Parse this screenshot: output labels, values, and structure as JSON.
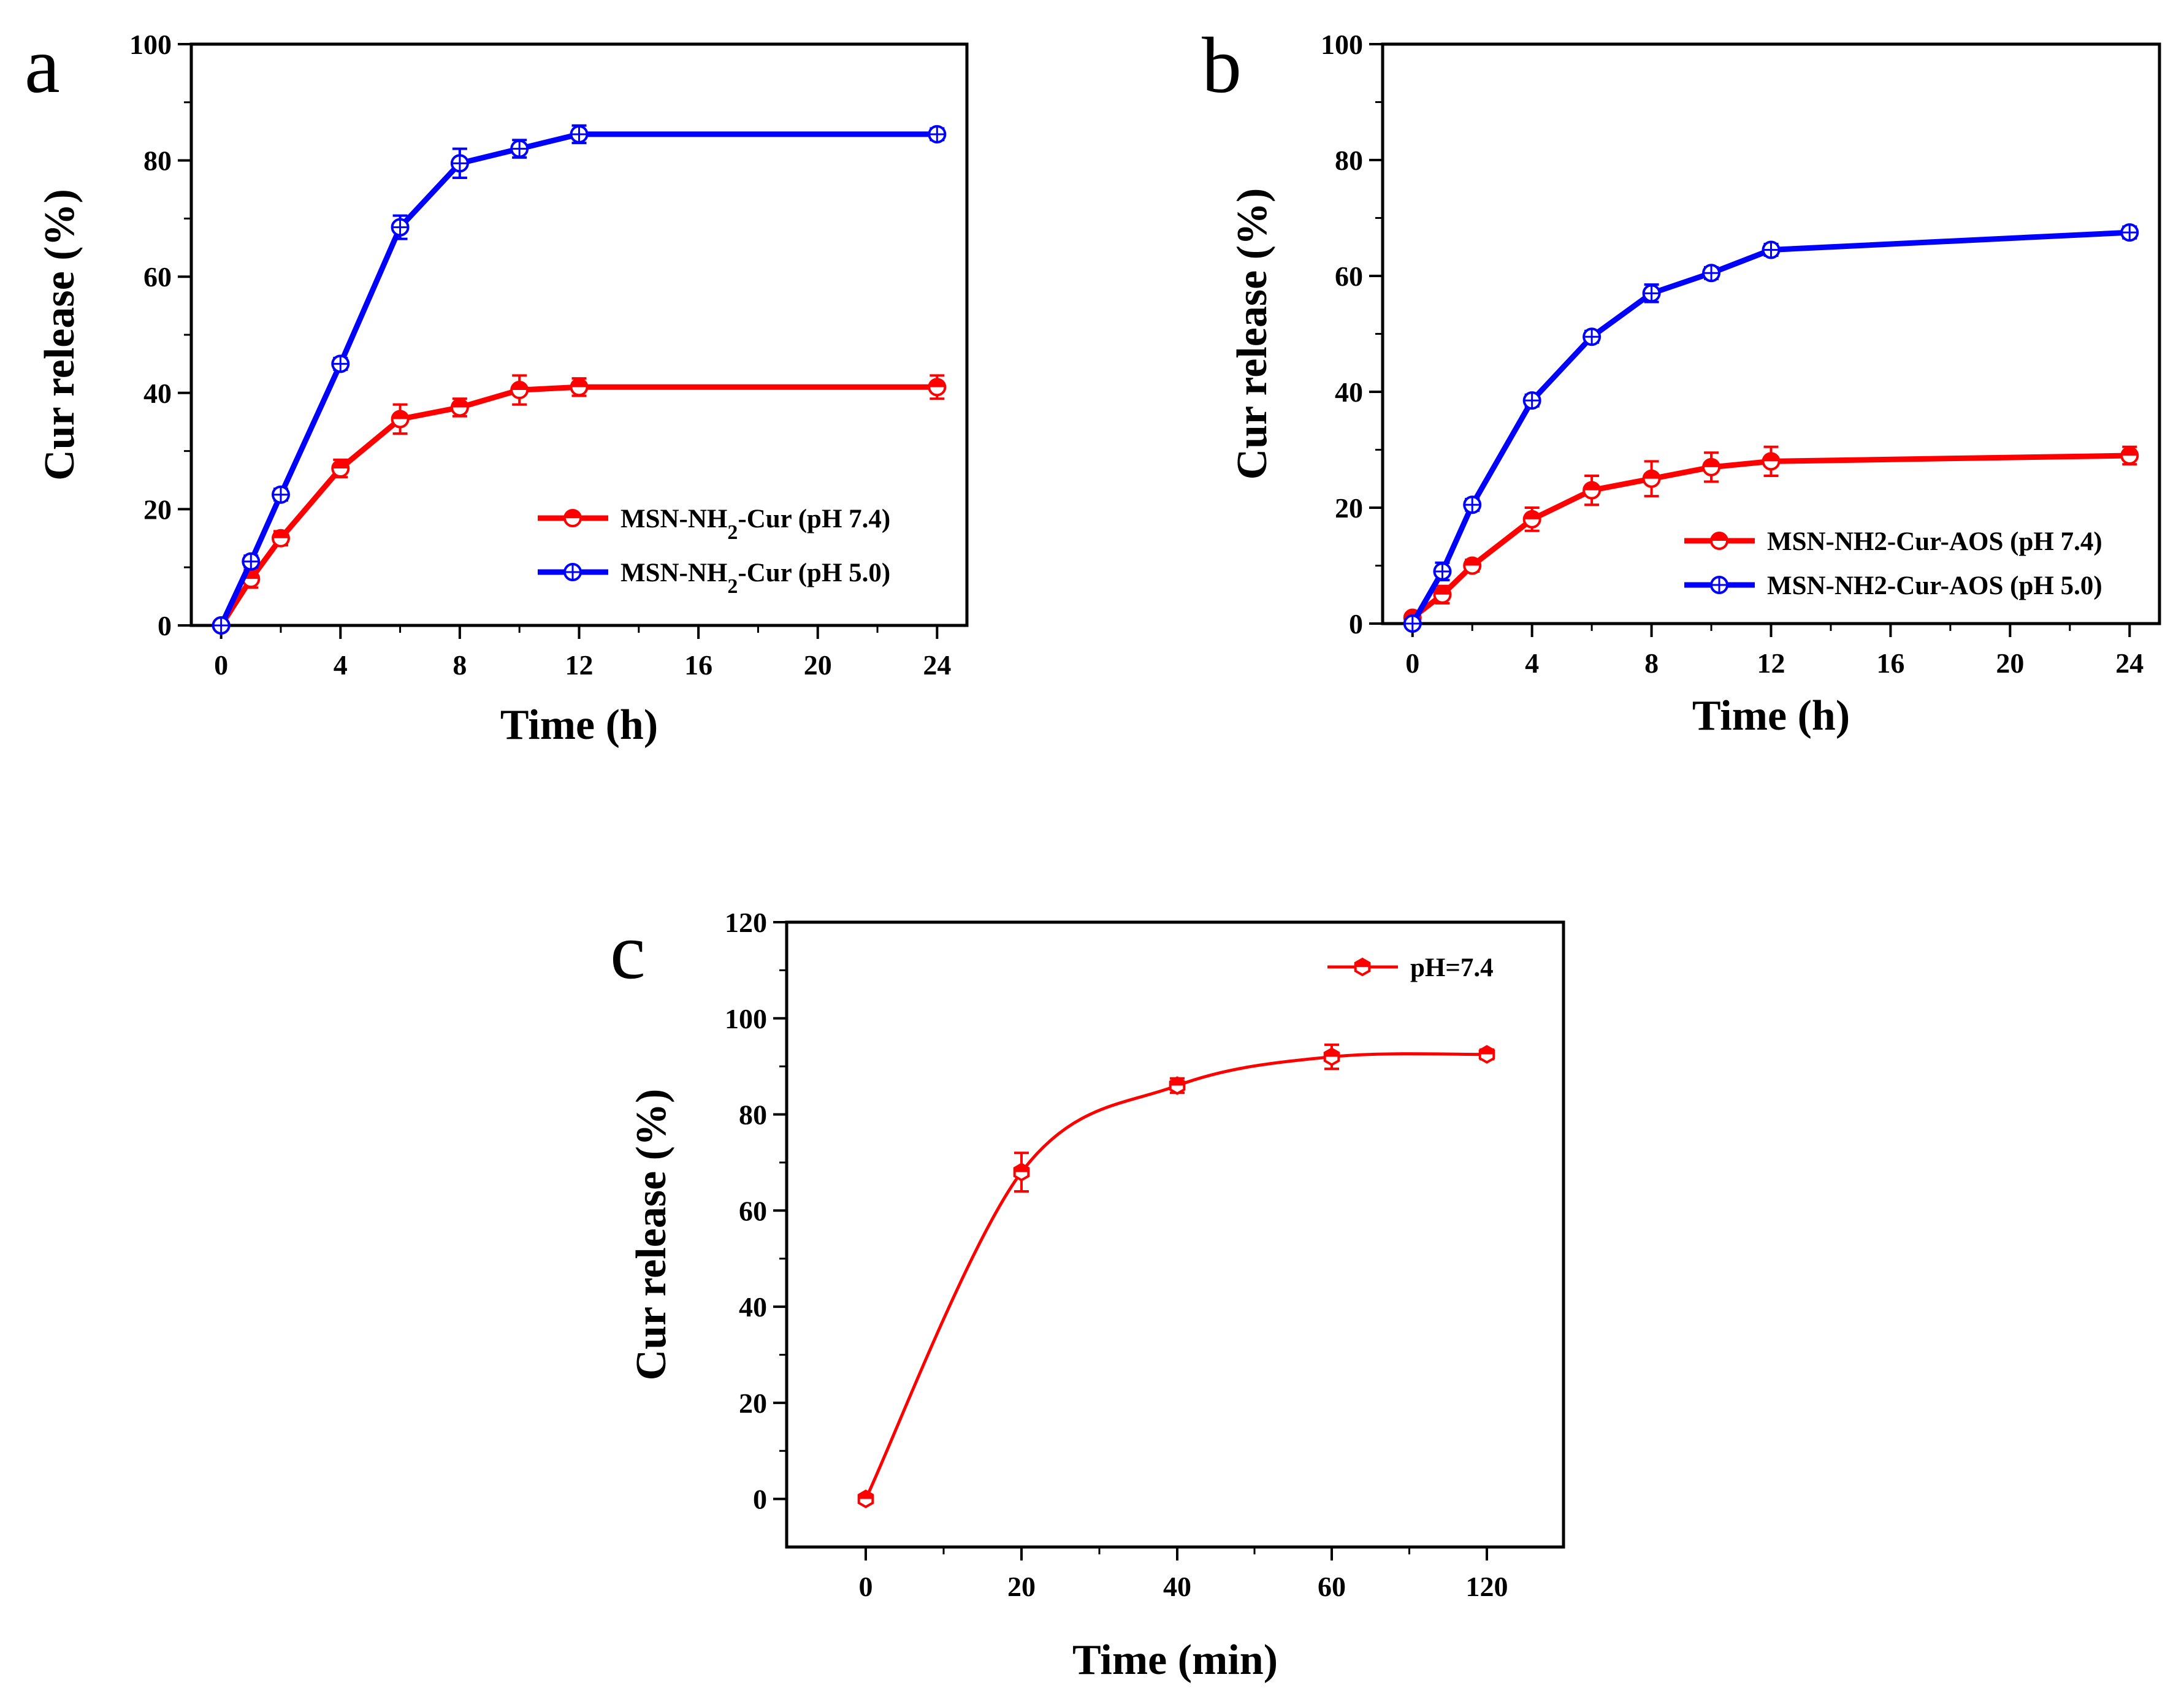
{
  "figure": {
    "charts_count": 3
  },
  "chart_data": [
    {
      "id": "a",
      "panel_label": "a",
      "type": "line",
      "xlabel": "Time (h)",
      "ylabel": "Cur release (%)",
      "xlim": [
        -1,
        25
      ],
      "ylim": [
        0,
        100
      ],
      "xticks": [
        "0",
        "4",
        "8",
        "12",
        "16",
        "20",
        "24"
      ],
      "yticks": [
        "0",
        "20",
        "40",
        "60",
        "80",
        "100"
      ],
      "x": [
        0,
        1,
        2,
        4,
        6,
        8,
        10,
        12,
        24
      ],
      "legend_position": "bottom-right",
      "series": [
        {
          "name_prefix": "MSN-NH",
          "name_sub": "2",
          "name_suffix": "-Cur (pH 7.4)",
          "color": "#ff0000",
          "values": [
            0,
            8,
            15,
            27,
            35.5,
            37.5,
            40.5,
            41,
            41
          ],
          "errors": [
            0.5,
            1.5,
            1.2,
            1.5,
            2.5,
            1.5,
            2.5,
            1.5,
            2
          ]
        },
        {
          "name_prefix": "MSN-NH",
          "name_sub": "2",
          "name_suffix": "-Cur (pH 5.0)",
          "color": "#0000ff",
          "values": [
            0,
            11,
            22.5,
            45,
            68.5,
            79.5,
            82,
            84.5,
            84.5
          ],
          "errors": [
            0.5,
            1,
            1,
            1,
            2,
            2.5,
            1.5,
            1.5,
            1
          ]
        }
      ]
    },
    {
      "id": "b",
      "panel_label": "b",
      "type": "line",
      "xlabel": "Time (h)",
      "ylabel": "Cur release (%)",
      "xlim": [
        -1,
        25
      ],
      "ylim": [
        0,
        100
      ],
      "xticks": [
        "0",
        "4",
        "8",
        "12",
        "16",
        "20",
        "24"
      ],
      "yticks": [
        "0",
        "20",
        "40",
        "60",
        "80",
        "100"
      ],
      "x": [
        0,
        1,
        2,
        4,
        6,
        8,
        10,
        12,
        24
      ],
      "legend_position": "bottom-right",
      "series": [
        {
          "name_prefix": "MSN-NH2-Cur-AOS (pH 7.4)",
          "name_sub": "",
          "name_suffix": "",
          "color": "#ff0000",
          "values": [
            1,
            5,
            10,
            18,
            23,
            25,
            27,
            28,
            29
          ],
          "errors": [
            0.5,
            1.5,
            1,
            2,
            2.5,
            3,
            2.5,
            2.5,
            1.5
          ]
        },
        {
          "name_prefix": "MSN-NH2-Cur-AOS (pH 5.0)",
          "name_sub": "",
          "name_suffix": "",
          "color": "#0000ff",
          "values": [
            0,
            9,
            20.5,
            38.5,
            49.5,
            57,
            60.5,
            64.5,
            67.5
          ],
          "errors": [
            0.5,
            1.5,
            1,
            1,
            1,
            1.5,
            1,
            1,
            1
          ]
        }
      ]
    },
    {
      "id": "c",
      "panel_label": "c",
      "type": "line",
      "xlabel": "Time (min)",
      "ylabel": "Cur release (%)",
      "ylim": [
        -10,
        120
      ],
      "xticks": [
        "0",
        "20",
        "40",
        "60",
        "120"
      ],
      "yticks": [
        "0",
        "20",
        "40",
        "60",
        "80",
        "100",
        "120"
      ],
      "x": [
        0,
        20,
        40,
        60,
        120
      ],
      "legend_position": "top-right",
      "series": [
        {
          "name_prefix": "pH=7.4",
          "name_sub": "",
          "name_suffix": "",
          "color": "#ff0000",
          "values": [
            0,
            68,
            86,
            92,
            92.5
          ],
          "errors": [
            0.5,
            4,
            1.5,
            2.5,
            1
          ]
        }
      ]
    }
  ]
}
